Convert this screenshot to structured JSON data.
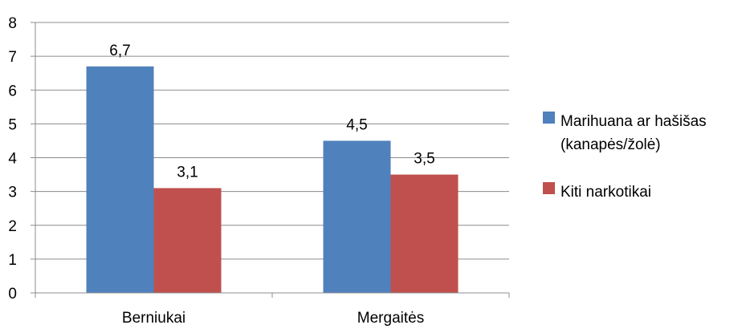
{
  "chart_data": {
    "type": "bar",
    "categories": [
      "Berniukai",
      "Mergaitės"
    ],
    "series": [
      {
        "name": "Marihuana ar hašišas (kanapės/žolė)",
        "name_lines": [
          "Marihuana ar hašišas",
          "(kanapės/žolė)"
        ],
        "color": "#4f81bd",
        "values": [
          6.7,
          4.5
        ],
        "labels": [
          "6,7",
          "4,5"
        ]
      },
      {
        "name": "Kiti narkotikai",
        "name_lines": [
          "Kiti narkotikai"
        ],
        "color": "#c0504d",
        "values": [
          3.1,
          3.5
        ],
        "labels": [
          "3,1",
          "3,5"
        ]
      }
    ],
    "y_ticks": [
      "0",
      "1",
      "2",
      "3",
      "4",
      "5",
      "6",
      "7",
      "8"
    ],
    "ylim": [
      0,
      8
    ],
    "grid": true,
    "legend_position": "right",
    "title": "",
    "xlabel": "",
    "ylabel": ""
  }
}
